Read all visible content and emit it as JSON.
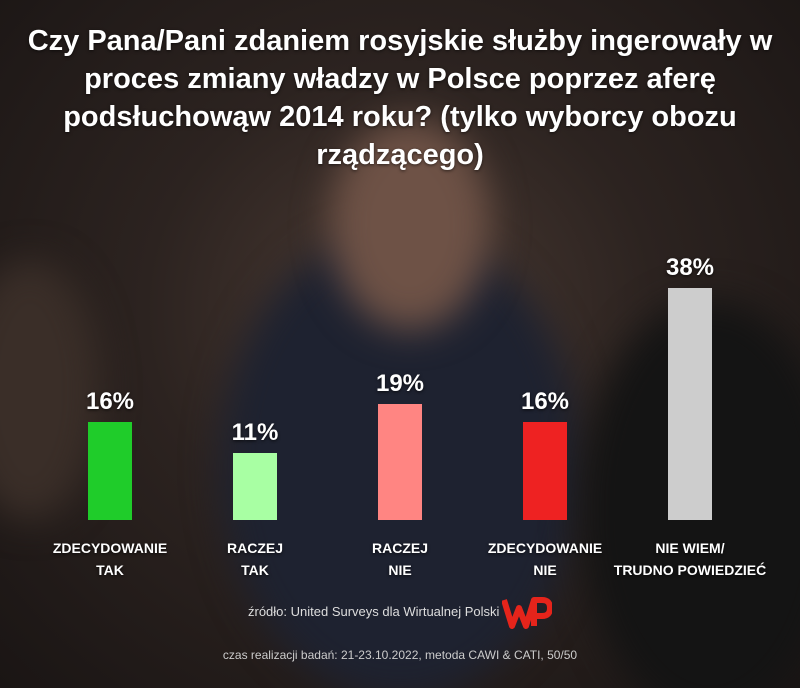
{
  "chart_data": {
    "type": "bar",
    "title": "Czy Pana/Pani zdaniem rosyjskie służby ingerowały w proces zmiany władzy w Polsce poprzez aferę podsłuchowąw 2014 roku? (tylko wyborcy obozu rządzącego)",
    "categories": [
      "ZDECYDOWANIE\nTAK",
      "RACZEJ\nTAK",
      "RACZEJ\nNIE",
      "ZDECYDOWANIE\nNIE",
      "NIE WIEM/\nTRUDNO POWIEDZIEĆ"
    ],
    "values": [
      16,
      11,
      19,
      16,
      38
    ],
    "value_labels": [
      "16%",
      "11%",
      "19%",
      "16%",
      "38%"
    ],
    "colors": [
      "#1fcc2a",
      "#a8ffa3",
      "#ff8582",
      "#ee2222",
      "#cdcdcd"
    ],
    "source": "źródło: United Surveys dla Wirtualnej Polski",
    "fieldwork": "czas realizacji badań: 21-23.10.2022, metoda CAWI & CATI, 50/50"
  }
}
